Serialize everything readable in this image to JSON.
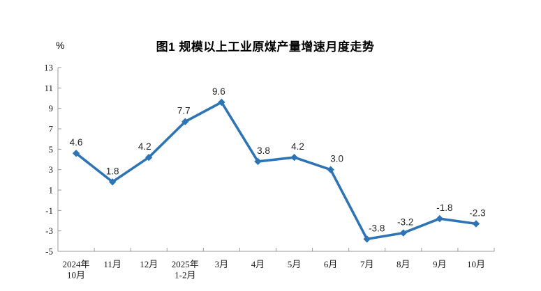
{
  "header": {
    "title": "图1  规模以上工业原煤产量增速月度走势",
    "unit_label": "%"
  },
  "chart_data": {
    "type": "line",
    "title": "图1  规模以上工业原煤产量增速月度走势",
    "unit": "%",
    "categories": [
      "2024年\n10月",
      "11月",
      "12月",
      "2025年\n1-2月",
      "3月",
      "4月",
      "5月",
      "6月",
      "7月",
      "8月",
      "9月",
      "10月"
    ],
    "values": [
      4.6,
      1.8,
      4.2,
      7.7,
      9.6,
      3.8,
      4.2,
      3.0,
      -3.8,
      -3.2,
      -1.8,
      -2.3
    ],
    "ylim": [
      -5,
      13
    ],
    "ytick_step": 2,
    "ytick_labels": [
      "13",
      "11",
      "9",
      "7",
      "5",
      "3",
      "1",
      "-1",
      "-3",
      "-5"
    ],
    "grid": false,
    "legend": "none",
    "marker": "diamond",
    "label_offsets_x": [
      0,
      0,
      -6,
      -2,
      -4,
      8,
      5,
      9,
      14,
      3,
      7,
      2
    ],
    "colors": {
      "line": "#2E74B5",
      "marker": "#2E74B5",
      "axis": "#9B9B9B",
      "tick_label": "#1a1a1a",
      "data_label": "#262626",
      "title": "#000000",
      "background": "#ffffff"
    }
  }
}
